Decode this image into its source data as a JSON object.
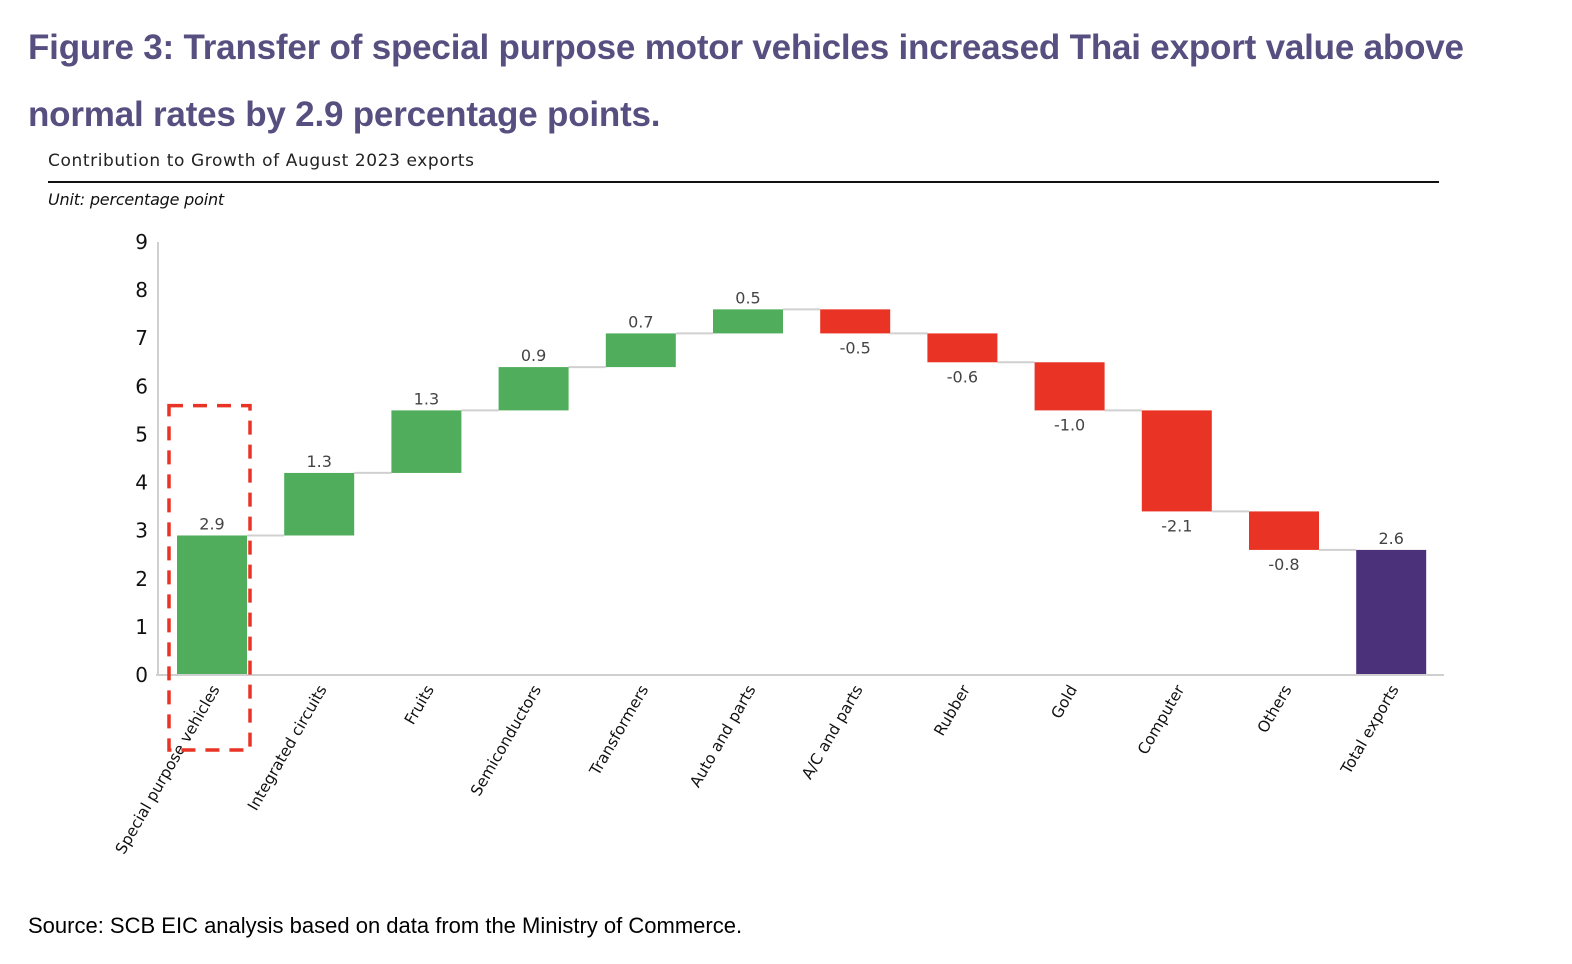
{
  "figure": {
    "title": "Figure 3: Transfer of special purpose motor vehicles increased Thai export value above normal rates by 2.9 percentage points.",
    "subtitle": "Contribution to Growth of August 2023 exports",
    "unit": "Unit: percentage point",
    "source": "Source: SCB EIC analysis based on data from the Ministry of Commerce."
  },
  "colors": {
    "title": "#564f80",
    "increase": "#4fad5b",
    "decrease": "#e93325",
    "total": "#4b317a",
    "highlight_box": "#e93325",
    "connector": "#d0d0d0",
    "axis": "#d0d0d0"
  },
  "chart_data": {
    "type": "bar",
    "subtype": "waterfall",
    "title": "Contribution to Growth of August 2023 exports",
    "xlabel": "",
    "ylabel": "Unit: percentage point",
    "ylim": [
      0,
      9
    ],
    "yticks": [
      0,
      1,
      2,
      3,
      4,
      5,
      6,
      7,
      8,
      9
    ],
    "grid": false,
    "legend": "none",
    "categories": [
      "Special purpose vehicles",
      "Integrated circuits",
      "Fruits",
      "Semiconductors",
      "Transformers",
      "Auto and parts",
      "A/C and parts",
      "Rubber",
      "Gold",
      "Computer",
      "Others",
      "Total exports"
    ],
    "values": [
      2.9,
      1.3,
      1.3,
      0.9,
      0.7,
      0.5,
      -0.5,
      -0.6,
      -1.0,
      -2.1,
      -0.8,
      2.6
    ],
    "labels": [
      "2.9",
      "1.3",
      "1.3",
      "0.9",
      "0.7",
      "0.5",
      "-0.5",
      "-0.6",
      "-1.0",
      "-2.1",
      "-0.8",
      "2.6"
    ],
    "kinds": [
      "increase",
      "increase",
      "increase",
      "increase",
      "increase",
      "increase",
      "decrease",
      "decrease",
      "decrease",
      "decrease",
      "decrease",
      "total"
    ],
    "highlighted_category": "Special purpose vehicles",
    "highlight_box_top_value": 5.6
  }
}
